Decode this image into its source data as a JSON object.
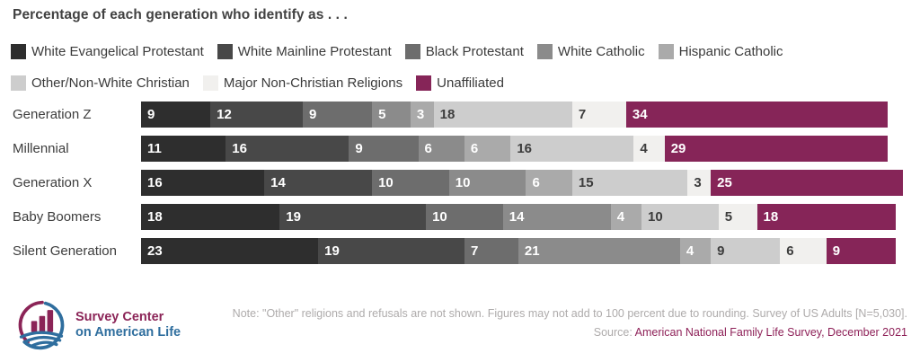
{
  "title": "Percentage of each generation who identify as . . .",
  "chart_data": {
    "type": "bar",
    "stacked": true,
    "orientation": "horizontal",
    "title": "Percentage of each generation who identify as . . .",
    "xlim": [
      0,
      100
    ],
    "grid": false,
    "legend_position": "top",
    "categories": [
      "Generation Z",
      "Millennial",
      "Generation X",
      "Baby Boomers",
      "Silent Generation"
    ],
    "series": [
      {
        "name": "White Evangelical Protestant",
        "color": "#2e2e2e",
        "text_color": "#ffffff",
        "values": [
          9,
          11,
          16,
          18,
          23
        ]
      },
      {
        "name": "White Mainline Protestant",
        "color": "#484848",
        "text_color": "#ffffff",
        "values": [
          12,
          16,
          14,
          19,
          19
        ]
      },
      {
        "name": "Black Protestant",
        "color": "#6d6d6d",
        "text_color": "#ffffff",
        "values": [
          9,
          9,
          10,
          10,
          7
        ]
      },
      {
        "name": "White Catholic",
        "color": "#8b8b8b",
        "text_color": "#ffffff",
        "values": [
          5,
          6,
          10,
          14,
          21
        ]
      },
      {
        "name": "Hispanic Catholic",
        "color": "#aaaaaa",
        "text_color": "#ffffff",
        "values": [
          3,
          6,
          6,
          4,
          4
        ]
      },
      {
        "name": "Other/Non-White Christian",
        "color": "#cdcdcd",
        "text_color": "#3d3d3d",
        "values": [
          18,
          16,
          15,
          10,
          9
        ]
      },
      {
        "name": "Major Non-Christian Religions",
        "color": "#f1f0ee",
        "text_color": "#3d3d3d",
        "values": [
          7,
          4,
          3,
          5,
          6
        ]
      },
      {
        "name": "Unaffiliated",
        "color": "#862558",
        "text_color": "#ffffff",
        "values": [
          34,
          29,
          25,
          18,
          9
        ]
      }
    ]
  },
  "footer": {
    "logo_line1": "Survey Center",
    "logo_line2": "on American Life",
    "note": "Note: \"Other\" religions and refusals are not shown. Figures may not add to 100 percent due to rounding. Survey of US Adults [N=5,030].",
    "source_prefix": "Source: ",
    "source_link": "American National Family Life Survey, December 2021"
  },
  "brand_colors": {
    "maroon": "#8b2457",
    "blue": "#2f6e9e"
  }
}
